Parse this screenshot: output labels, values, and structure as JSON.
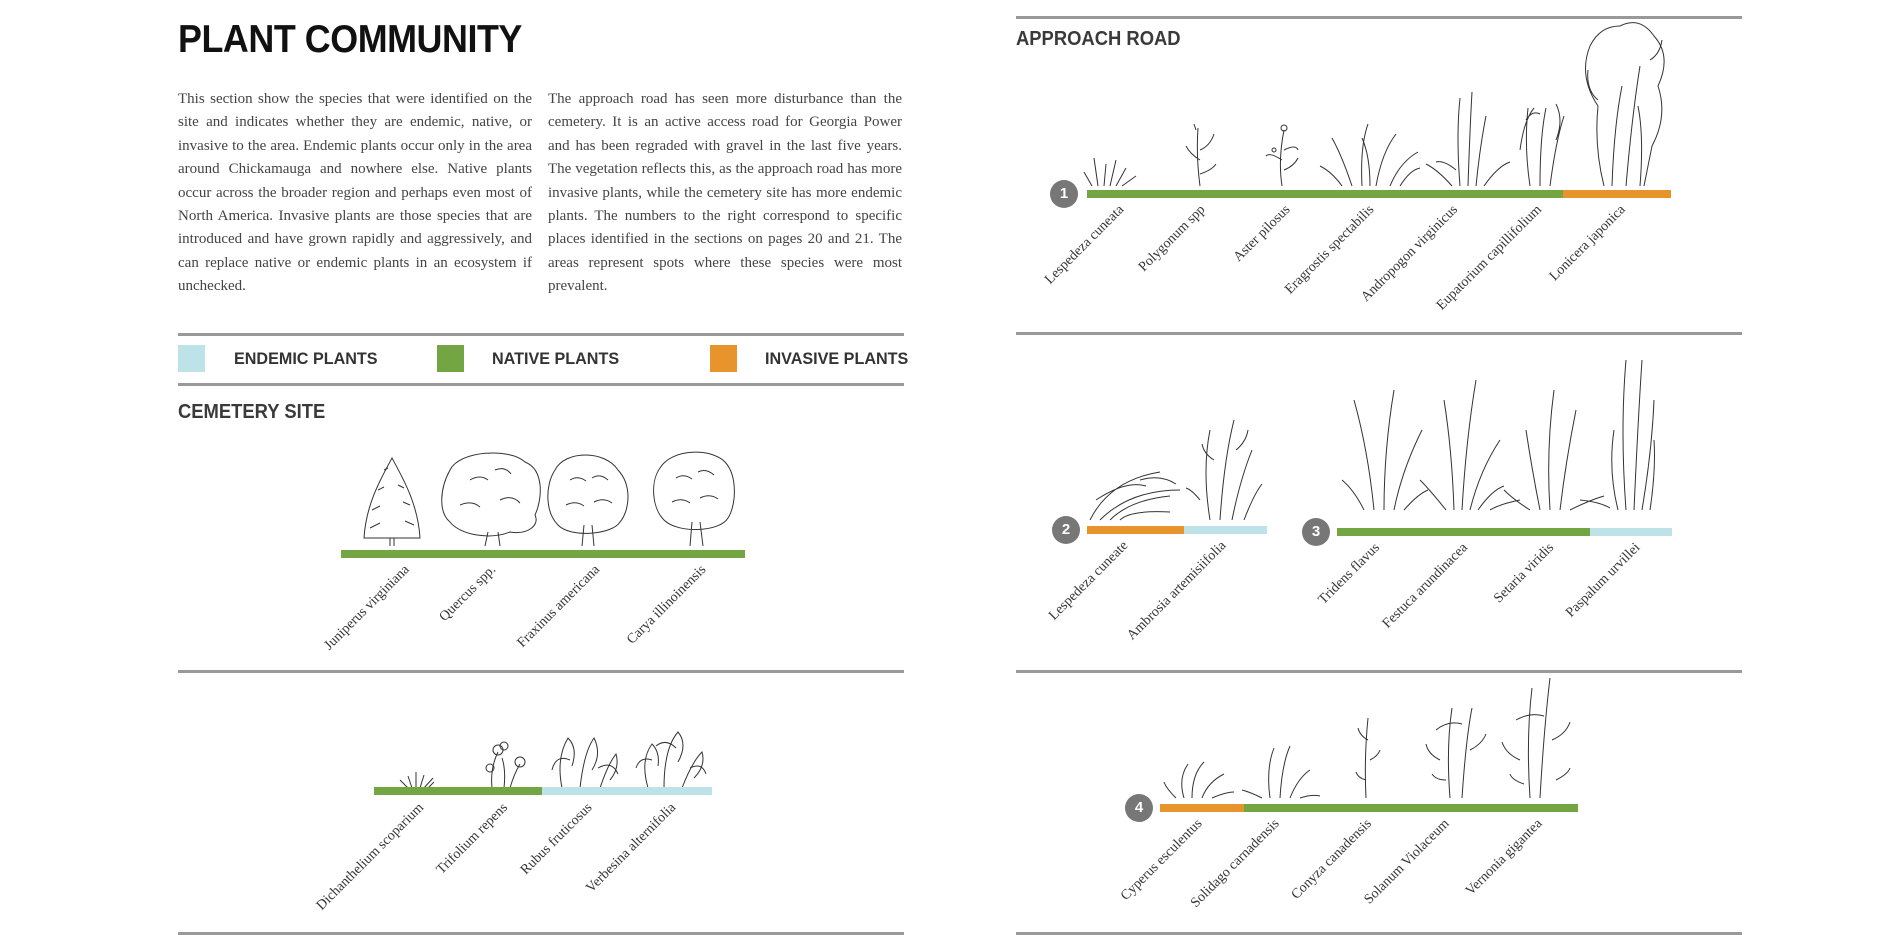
{
  "page": {
    "title": "PLANT COMMUNITY",
    "intro_left": "This section show the species that were identified on the site and indicates whether they are endemic, native, or invasive to the area. Endemic plants occur only in the area around Chickamauga and nowhere else. Native plants occur across the broader region and perhaps even most of North America. Invasive plants are those species that are introduced and have grown rapidly and aggressively, and can replace native or endemic plants in an ecosystem if unchecked.",
    "intro_right": "The approach road has seen more disturbance than the cemetery. It is an active access road for Georgia Power and has been regraded with gravel in the last five years. The vegetation reflects this, as the approach road has more invasive plants, while the cemetery site has more endemic plants. The numbers to the right correspond to specific places identified in the sections on pages 20 and 21. The areas represent spots where these species were most prevalent."
  },
  "colors": {
    "endemic": "#bde3e8",
    "native": "#73a543",
    "invasive": "#e6942b",
    "rule": "#999999",
    "badge": "#777777"
  },
  "legend": [
    {
      "label": "ENDEMIC PLANTS",
      "color": "#bde3e8"
    },
    {
      "label": "NATIVE PLANTS",
      "color": "#73a543"
    },
    {
      "label": "INVASIVE PLANTS",
      "color": "#e6942b"
    }
  ],
  "cemetery": {
    "title": "CEMETERY SITE",
    "trees": [
      "Juniperus virginiana",
      "Quercus spp.",
      "Fraxinus americana",
      "Carya illinoinensis"
    ],
    "ground": [
      "Dichanthelium scoparium",
      "Trifolium repens",
      "Rubus fruticosus",
      "Verbesina alternifolia"
    ]
  },
  "approach": {
    "title": "APPROACH ROAD",
    "area1": {
      "number": "1",
      "species": [
        "Lespedeza cuneata",
        "Polygonum spp",
        "Aster pilosus",
        "Eragrostis spectabilis",
        "Andropogon virginicus",
        "Eupatorium capillifolium",
        "Lonicera japonica"
      ]
    },
    "area2": {
      "number": "2",
      "species": [
        "Lespedeza cuneate",
        "Ambrosia artemisiifolia"
      ]
    },
    "area3": {
      "number": "3",
      "species": [
        "Tridens flavus",
        "Festuca arundinacea",
        "Setaria viridis",
        "Paspalum urvillei"
      ]
    },
    "area4": {
      "number": "4",
      "species": [
        "Cyperus esculentus",
        "Solidago carnadensis",
        "Conyza canadensis",
        "Solanum Violaceum",
        "Vernonia gigantea"
      ]
    }
  }
}
